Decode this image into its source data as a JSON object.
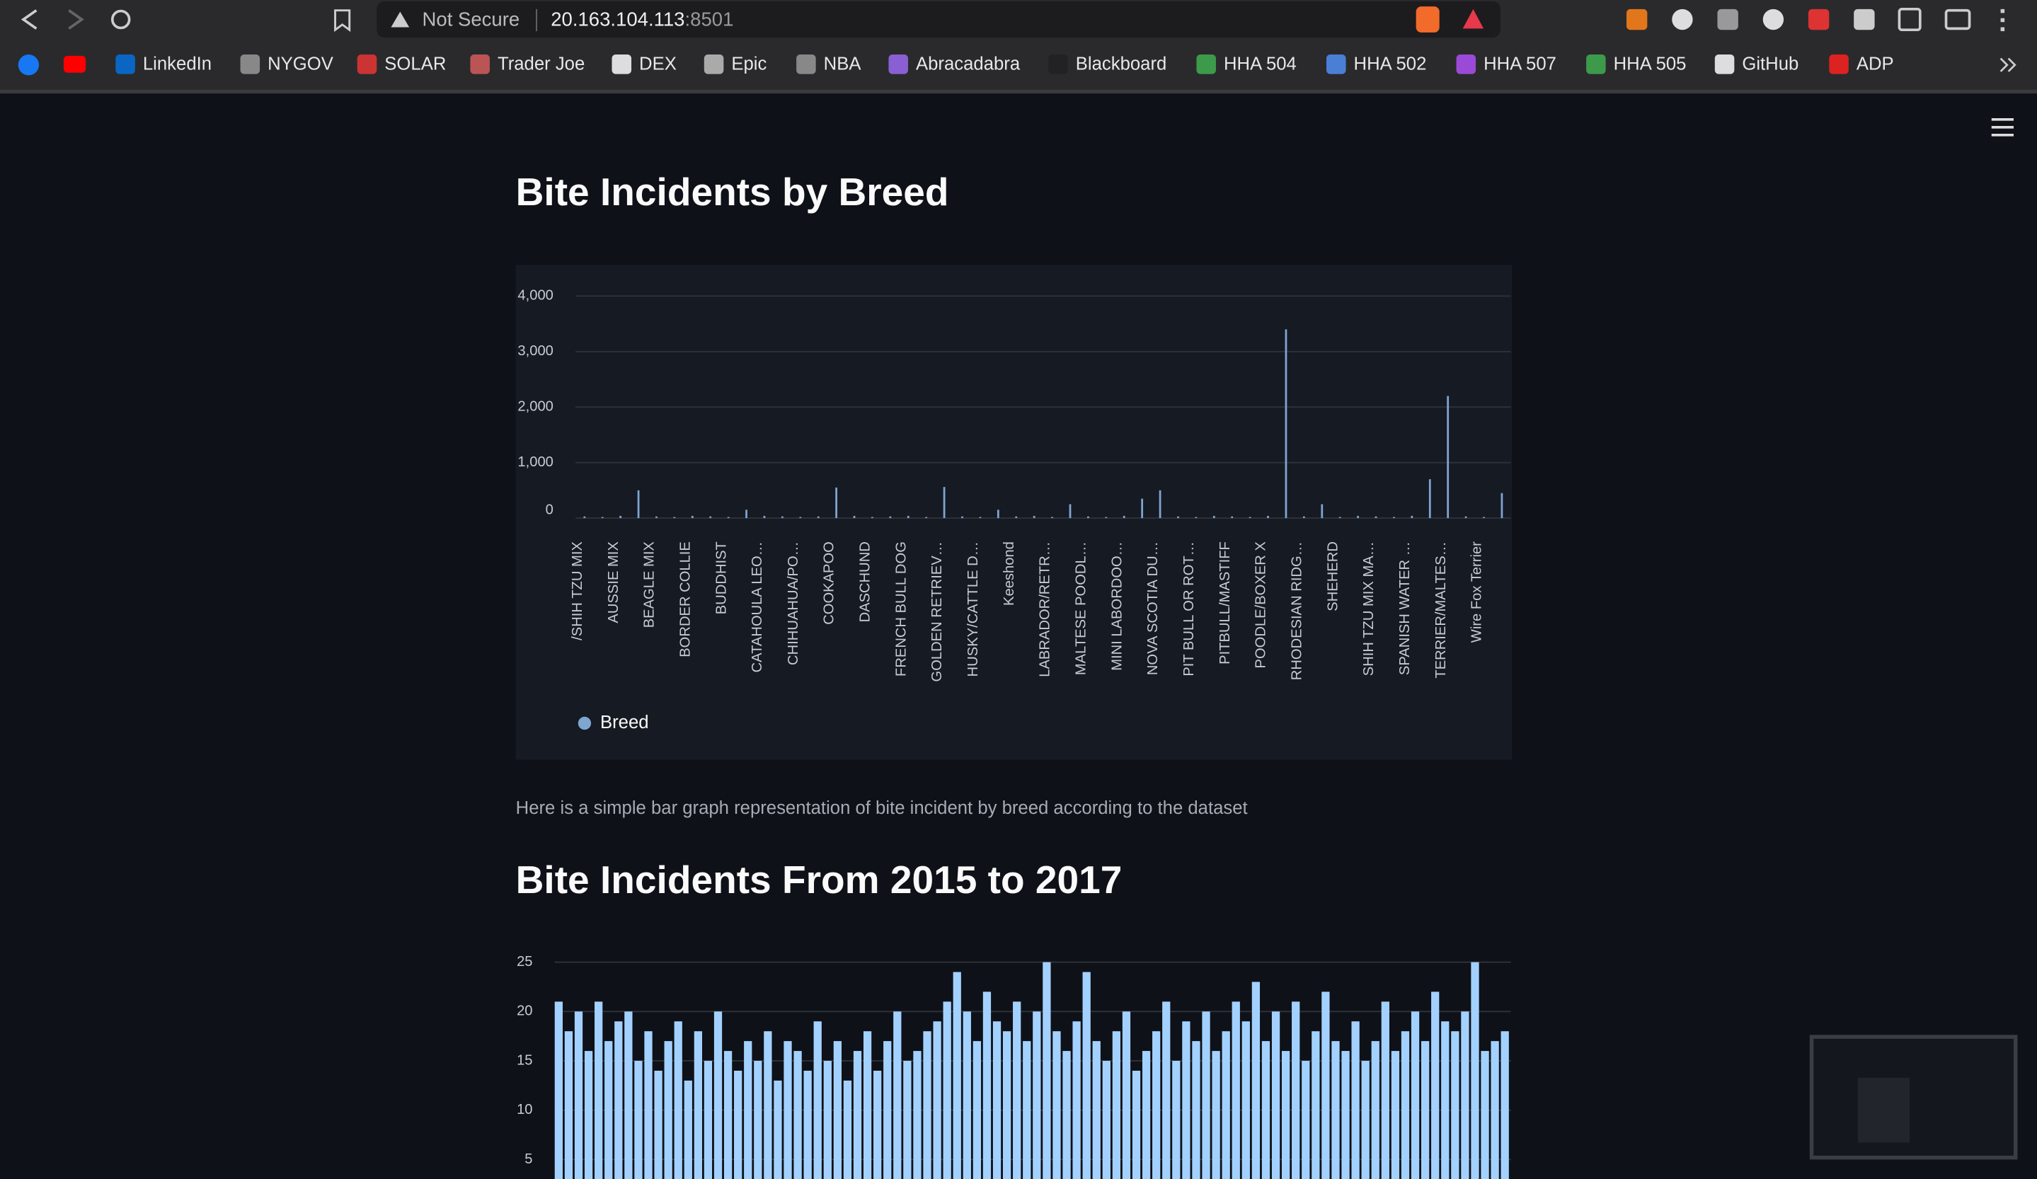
{
  "browser": {
    "address_warning": "Not Secure",
    "address_host": "20.163.104.113",
    "address_port": ":8501",
    "bookmarks": [
      "LinkedIn",
      "NYGOV",
      "SOLAR",
      "Trader Joe",
      "DEX",
      "Epic",
      "NBA",
      "Abracadabra",
      "Blackboard",
      "HHA 504",
      "HHA 502",
      "HHA 507",
      "HHA 505",
      "GitHub",
      "ADP"
    ]
  },
  "page": {
    "paragraph": "Here is a simple bar graph representation of bite incident by breed according to the dataset"
  },
  "chart_data": [
    {
      "type": "bar",
      "title": "Bite Incidents by Breed",
      "categories": [
        "/SHIH TZU MIX",
        null,
        "AUSSIE MIX",
        null,
        "BEAGLE MIX",
        null,
        "BORDER COLLIE",
        null,
        "BUDDHIST",
        null,
        "CATAHOULA LEO…",
        null,
        "CHIHUAHUA/PO…",
        null,
        "COOKAPOO",
        null,
        "DASCHUND",
        null,
        "FRENCH BULL DOG",
        null,
        "GOLDEN RETRIEV…",
        null,
        "HUSKY/CATTLE D…",
        null,
        "Keeshond",
        null,
        "LABRADOR/RETR…",
        null,
        "MALTESE POODL…",
        null,
        "MINI LABORDOO…",
        null,
        "NOVA SCOTIA DU…",
        null,
        "PIT BULL OR ROT…",
        null,
        "PITBULL/MASTIFF",
        null,
        "POODLE/BOXER X",
        null,
        "RHODESIAN RIDG…",
        null,
        "SHEHERD",
        null,
        "SHIH TZU MIX MA…",
        null,
        "SPANISH WATER …",
        null,
        "TERRIER/MALTES…",
        null,
        "Wire Fox Terrier",
        null
      ],
      "series": [
        {
          "name": "Breed",
          "color": "#7fa6d0",
          "values": [
            30,
            20,
            40,
            500,
            30,
            20,
            40,
            30,
            20,
            150,
            40,
            30,
            20,
            30,
            550,
            40,
            20,
            30,
            40,
            20,
            560,
            30,
            20,
            150,
            30,
            40,
            20,
            250,
            30,
            20,
            40,
            350,
            500,
            30,
            20,
            40,
            30,
            20,
            40,
            3400,
            30,
            250,
            20,
            40,
            30,
            20,
            40,
            700,
            2200,
            30,
            20,
            450
          ]
        }
      ],
      "ylim": [
        0,
        4000
      ],
      "yticks": [
        0,
        {
          "value": 1000,
          "label": "1,000"
        },
        {
          "value": 2000,
          "label": "2,000"
        },
        {
          "value": 3000,
          "label": "3,000"
        },
        {
          "value": 4000,
          "label": "4,000"
        }
      ],
      "grid": true
    },
    {
      "type": "bar",
      "title": "Bite Incidents From 2015 to 2017",
      "color": "#a3d1ff",
      "values": [
        21,
        18,
        20,
        16,
        21,
        17,
        19,
        20,
        15,
        18,
        14,
        17,
        19,
        13,
        18,
        15,
        20,
        16,
        14,
        17,
        15,
        18,
        13,
        17,
        16,
        14,
        19,
        15,
        17,
        13,
        16,
        18,
        14,
        17,
        20,
        15,
        16,
        18,
        19,
        21,
        24,
        20,
        17,
        22,
        19,
        18,
        21,
        17,
        20,
        25,
        18,
        16,
        19,
        24,
        17,
        15,
        18,
        20,
        14,
        16,
        18,
        21,
        15,
        19,
        17,
        20,
        16,
        18,
        21,
        19,
        23,
        17,
        20,
        16,
        21,
        15,
        18,
        22,
        17,
        16,
        19,
        15,
        17,
        21,
        16,
        18,
        20,
        17,
        22,
        19,
        18,
        20,
        25,
        16,
        17,
        18
      ],
      "ylim": [
        0,
        25
      ],
      "yticks": [
        5,
        10,
        15,
        20,
        25
      ],
      "grid": true
    }
  ]
}
